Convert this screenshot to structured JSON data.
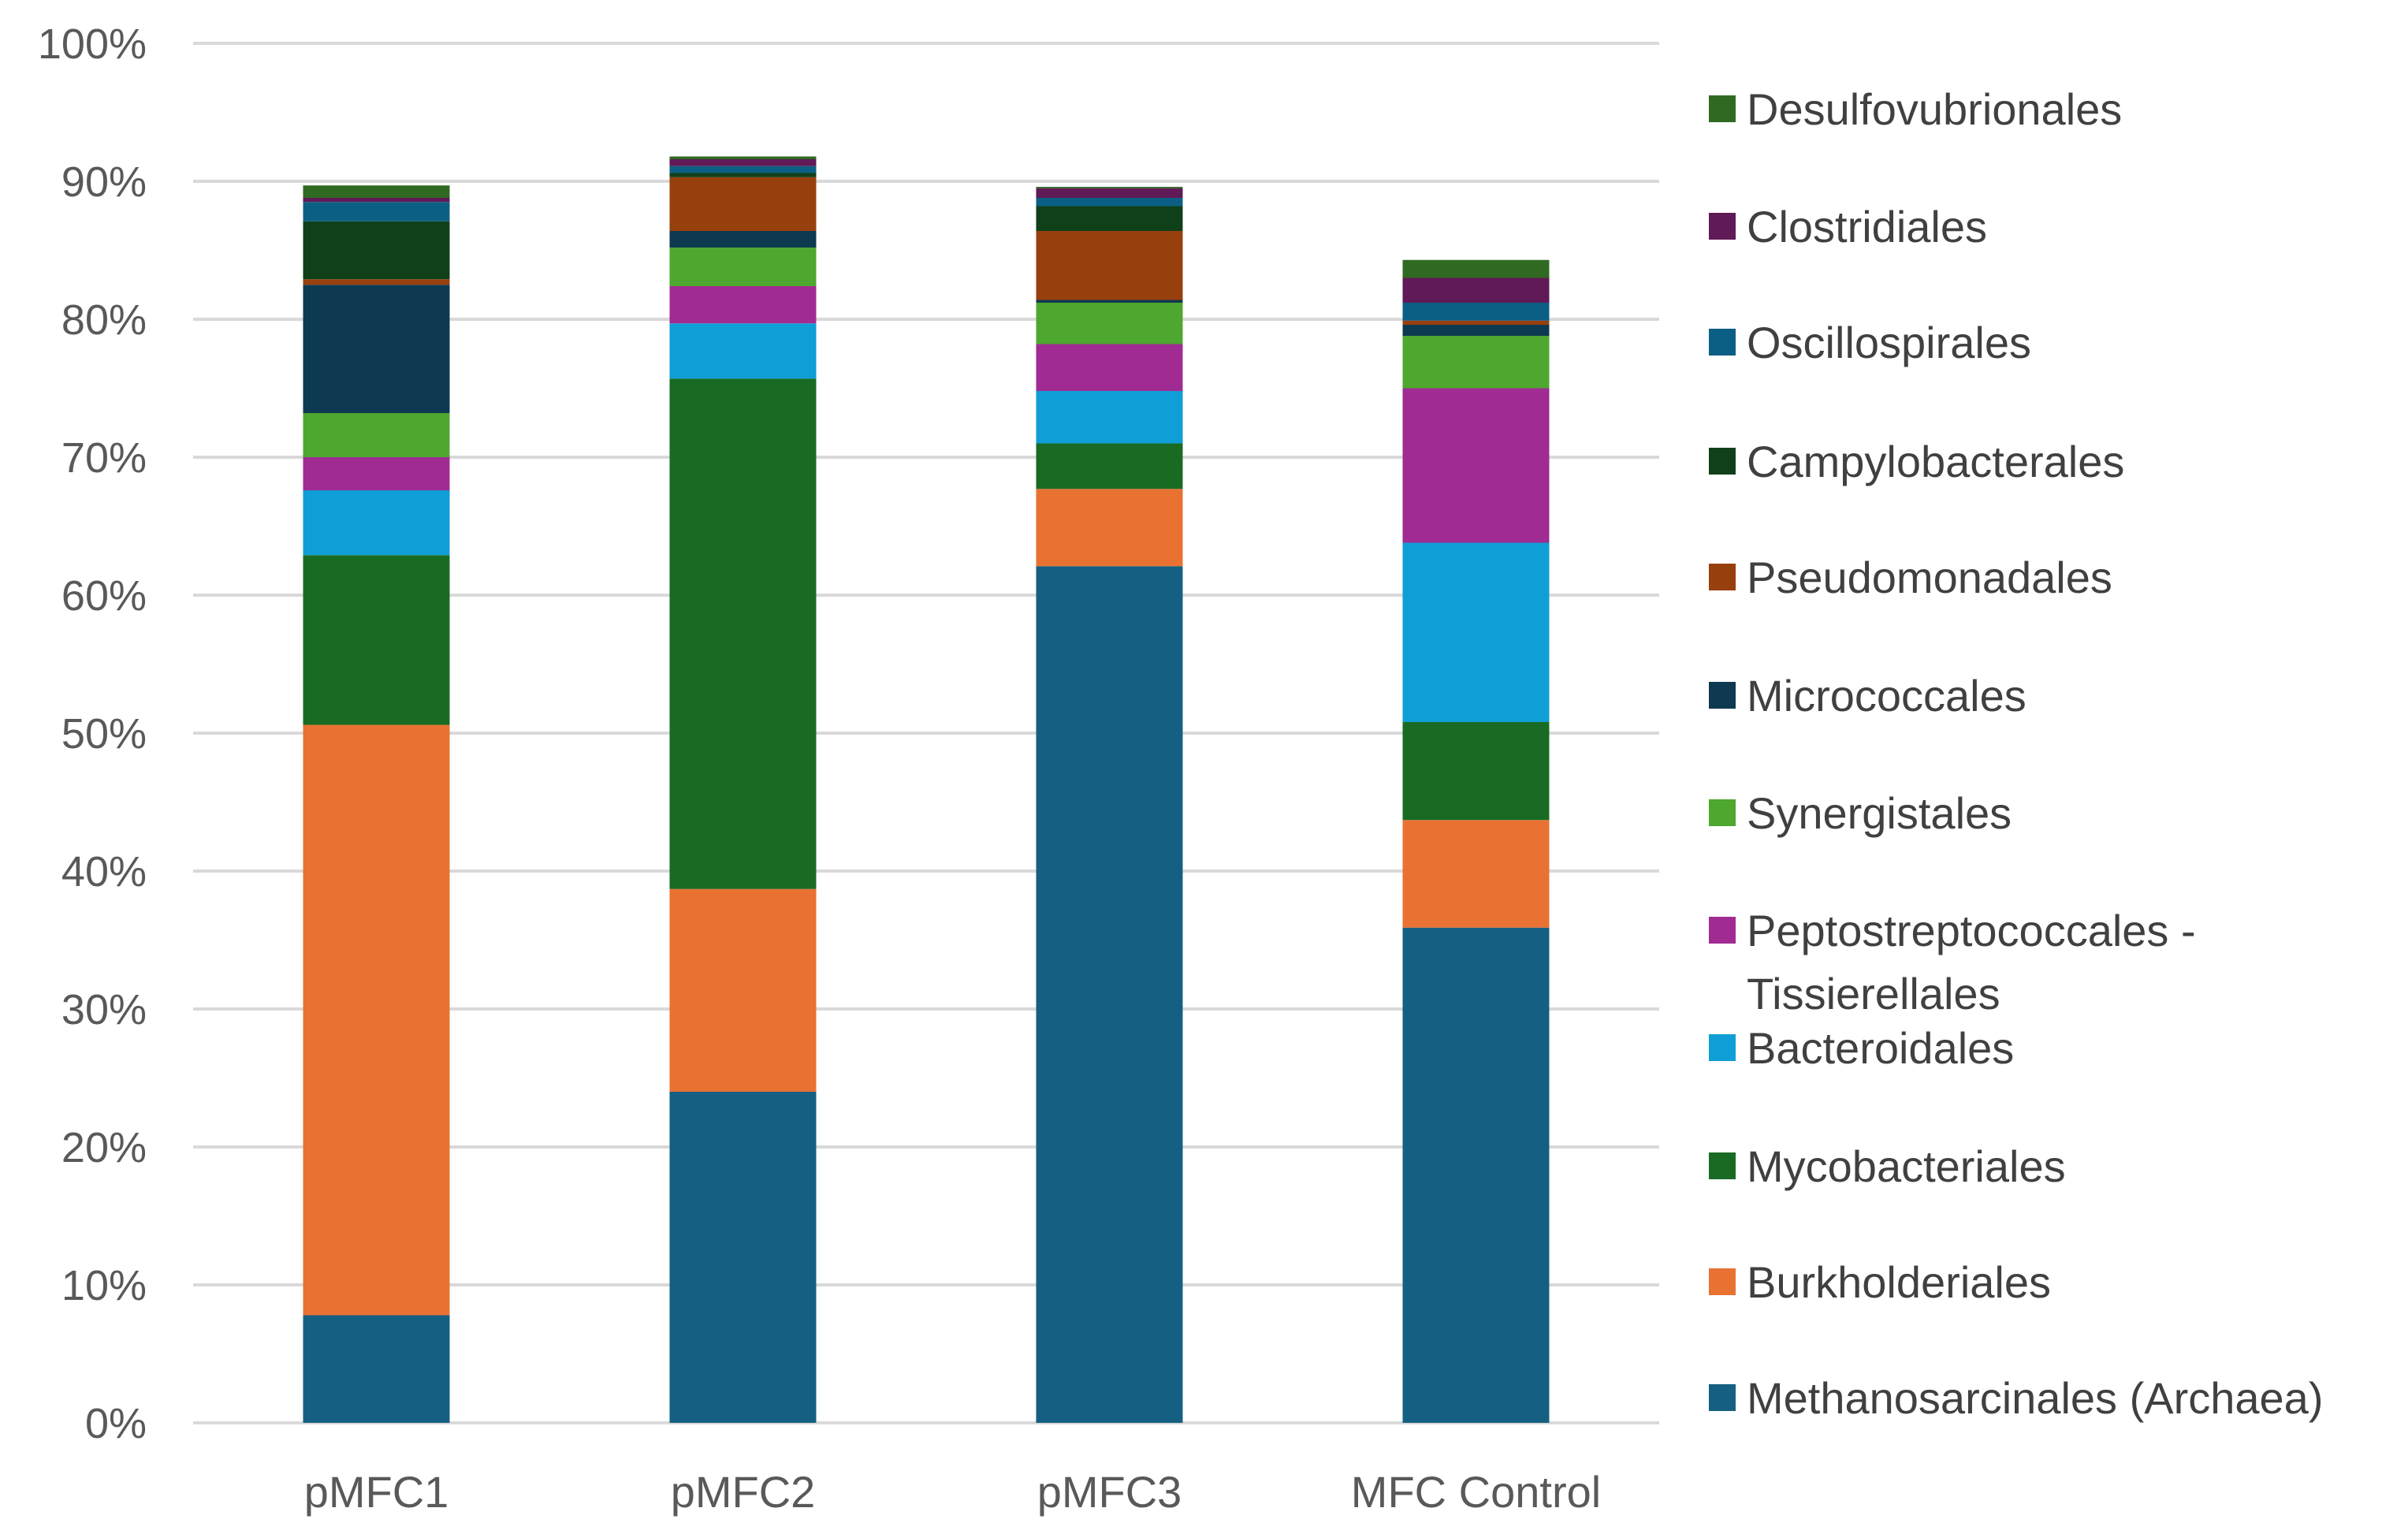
{
  "chart_data": {
    "type": "bar",
    "stacked": true,
    "title": "",
    "xlabel": "",
    "ylabel": "",
    "ylim": [
      0,
      100
    ],
    "y_tick_labels": [
      "0%",
      "10%",
      "20%",
      "30%",
      "40%",
      "50%",
      "60%",
      "70%",
      "80%",
      "90%",
      "100%"
    ],
    "grid": true,
    "legend_position": "right",
    "categories": [
      "pMFC1",
      "pMFC2",
      "pMFC3",
      "MFC Control"
    ],
    "series": [
      {
        "name": "Methanosarcinales (Archaea)",
        "color": "#156082",
        "values": [
          7.8,
          24.0,
          62.1,
          35.9
        ]
      },
      {
        "name": "Burkholderiales",
        "color": "#e97132",
        "values": [
          42.8,
          14.7,
          5.6,
          7.8
        ]
      },
      {
        "name": "Mycobacteriales",
        "color": "#196b24",
        "values": [
          12.3,
          37.0,
          3.3,
          7.1
        ]
      },
      {
        "name": "Bacteroidales",
        "color": "#0f9ed5",
        "values": [
          4.7,
          4.0,
          3.8,
          13.0
        ]
      },
      {
        "name": "Peptostreptococcales - Tissierellales",
        "color": "#a02b93",
        "values": [
          2.4,
          2.7,
          3.4,
          11.2
        ]
      },
      {
        "name": "Synergistales",
        "color": "#4ea72e",
        "values": [
          3.2,
          2.8,
          3.0,
          3.8
        ]
      },
      {
        "name": "Micrococcales",
        "color": "#0e3a51",
        "values": [
          9.3,
          1.2,
          0.2,
          0.8
        ]
      },
      {
        "name": "Pseudomonadales",
        "color": "#983f0e",
        "values": [
          0.4,
          3.9,
          5.0,
          0.3
        ]
      },
      {
        "name": "Campylobacterales",
        "color": "#10401a",
        "values": [
          4.2,
          0.3,
          1.8,
          0.0
        ]
      },
      {
        "name": "Oscillospirales",
        "color": "#0c5f84",
        "values": [
          1.4,
          0.5,
          0.6,
          1.3
        ]
      },
      {
        "name": "Clostridiales",
        "color": "#5f1a57",
        "values": [
          0.3,
          0.5,
          0.7,
          1.8
        ]
      },
      {
        "name": "Desulfovubrionales",
        "color": "#306a22",
        "values": [
          0.9,
          0.2,
          0.1,
          1.3
        ]
      }
    ]
  }
}
